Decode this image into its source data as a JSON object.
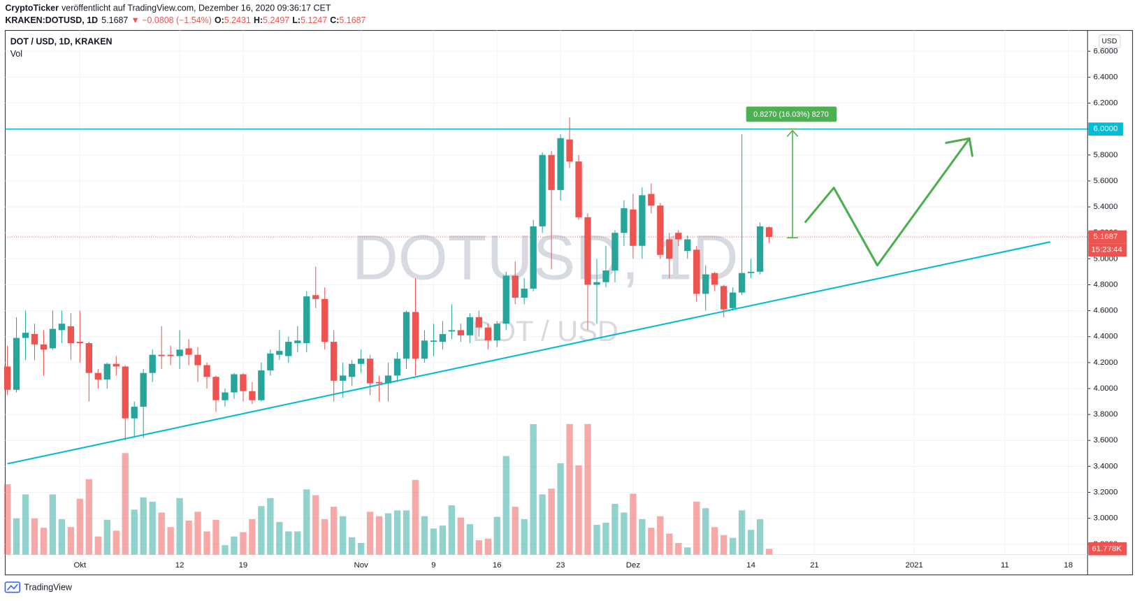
{
  "header": {
    "publisher": "CryptoTicker",
    "published": "veröffentlicht auf TradingView.com, Dezember 16, 2020 09:36:17 CET",
    "symbol": "KRAKEN:DOTUSD, 1D",
    "last": "5.1687",
    "change": "▼ −0.0808 (−1.54%)",
    "ohlc": [
      {
        "label": "O:",
        "value": "5.2431"
      },
      {
        "label": "H:",
        "value": "5.2497"
      },
      {
        "label": "L:",
        "value": "5.1247"
      },
      {
        "label": "C:",
        "value": "5.1687"
      }
    ]
  },
  "chart_data": {
    "type": "candlestick",
    "name": "DOT / USD, 1D, KRAKEN",
    "volume_name": "Vol",
    "currency": "USD",
    "watermark": {
      "title": "DOTUSD, 1D",
      "subtitle": "DOT / USD"
    },
    "up_color": "#26a69a",
    "down_color": "#ef5350",
    "x": [
      "2020-09-23",
      "2020-09-24",
      "2020-09-25",
      "2020-09-26",
      "2020-09-27",
      "2020-09-28",
      "2020-09-29",
      "2020-09-30",
      "2020-10-01",
      "2020-10-02",
      "2020-10-03",
      "2020-10-04",
      "2020-10-05",
      "2020-10-06",
      "2020-10-07",
      "2020-10-08",
      "2020-10-09",
      "2020-10-10",
      "2020-10-11",
      "2020-10-12",
      "2020-10-13",
      "2020-10-14",
      "2020-10-15",
      "2020-10-16",
      "2020-10-17",
      "2020-10-18",
      "2020-10-19",
      "2020-10-20",
      "2020-10-21",
      "2020-10-22",
      "2020-10-23",
      "2020-10-24",
      "2020-10-25",
      "2020-10-26",
      "2020-10-27",
      "2020-10-28",
      "2020-10-29",
      "2020-10-30",
      "2020-10-31",
      "2020-11-01",
      "2020-11-02",
      "2020-11-03",
      "2020-11-04",
      "2020-11-05",
      "2020-11-06",
      "2020-11-07",
      "2020-11-08",
      "2020-11-09",
      "2020-11-10",
      "2020-11-11",
      "2020-11-12",
      "2020-11-13",
      "2020-11-14",
      "2020-11-15",
      "2020-11-16",
      "2020-11-17",
      "2020-11-18",
      "2020-11-19",
      "2020-11-20",
      "2020-11-21",
      "2020-11-22",
      "2020-11-23",
      "2020-11-24",
      "2020-11-25",
      "2020-11-26",
      "2020-11-27",
      "2020-11-28",
      "2020-11-29",
      "2020-11-30",
      "2020-12-01",
      "2020-12-02",
      "2020-12-03",
      "2020-12-04",
      "2020-12-05",
      "2020-12-06",
      "2020-12-07",
      "2020-12-08",
      "2020-12-09",
      "2020-12-10",
      "2020-12-11",
      "2020-12-12",
      "2020-12-13",
      "2020-12-14",
      "2020-12-15",
      "2020-12-16"
    ],
    "open": [
      4.17,
      3.99,
      4.39,
      4.42,
      4.34,
      4.31,
      4.45,
      4.48,
      4.36,
      4.35,
      4.12,
      4.07,
      4.19,
      4.17,
      3.77,
      3.86,
      4.12,
      4.26,
      4.26,
      4.25,
      4.31,
      4.26,
      4.18,
      4.09,
      3.91,
      3.97,
      4.11,
      3.98,
      3.91,
      4.14,
      4.26,
      4.25,
      4.35,
      4.35,
      4.72,
      4.69,
      4.36,
      4.06,
      4.09,
      4.19,
      4.23,
      4.05,
      4.04,
      4.1,
      4.23,
      4.59,
      4.23,
      4.36,
      4.36,
      4.44,
      4.45,
      4.41,
      4.55,
      4.47,
      4.37,
      4.5,
      4.87,
      4.7,
      4.77,
      5.25,
      5.8,
      5.53,
      5.92,
      5.75,
      5.32,
      4.8,
      4.82,
      4.91,
      5.2,
      5.38,
      5.1,
      5.5,
      5.41,
      5.15,
      5.2,
      5.06,
      5.07,
      4.73,
      4.89,
      4.79,
      4.62,
      4.74,
      4.89,
      4.9,
      5.2431
    ],
    "high": [
      4.33,
      4.55,
      4.6,
      4.5,
      4.45,
      4.6,
      4.6,
      4.58,
      4.6,
      4.36,
      4.15,
      4.2,
      4.25,
      4.18,
      3.9,
      4.15,
      4.3,
      4.48,
      4.33,
      4.45,
      4.38,
      4.32,
      4.2,
      4.1,
      4.0,
      4.12,
      4.12,
      4.05,
      4.2,
      4.3,
      4.45,
      4.4,
      4.48,
      4.75,
      4.94,
      4.78,
      4.45,
      4.2,
      4.22,
      4.3,
      4.26,
      4.1,
      4.2,
      4.28,
      4.6,
      4.85,
      4.45,
      4.5,
      4.52,
      4.65,
      4.5,
      4.58,
      4.6,
      4.5,
      4.52,
      4.9,
      4.98,
      4.85,
      5.3,
      5.82,
      5.83,
      5.96,
      6.09,
      5.8,
      5.35,
      5.0,
      5.1,
      5.22,
      5.45,
      5.5,
      5.55,
      5.58,
      5.43,
      5.2,
      5.22,
      5.18,
      5.1,
      4.95,
      4.9,
      4.8,
      4.78,
      5.96,
      5.0,
      5.28,
      5.2497
    ],
    "low": [
      3.95,
      3.97,
      4.22,
      4.22,
      4.1,
      4.3,
      4.35,
      4.22,
      4.2,
      3.9,
      4.0,
      4.0,
      4.1,
      3.6,
      3.62,
      3.62,
      4.05,
      4.15,
      4.18,
      4.15,
      4.18,
      4.05,
      4.0,
      3.82,
      3.86,
      3.92,
      3.9,
      3.88,
      3.9,
      4.1,
      4.22,
      4.2,
      4.28,
      4.28,
      4.62,
      4.3,
      3.9,
      3.93,
      4.02,
      4.12,
      3.95,
      3.9,
      3.9,
      4.05,
      4.15,
      4.1,
      4.2,
      4.25,
      4.3,
      4.38,
      4.36,
      4.35,
      4.4,
      4.3,
      4.32,
      4.45,
      4.65,
      4.65,
      4.75,
      5.2,
      4.92,
      5.45,
      5.7,
      5.3,
      4.45,
      4.5,
      4.78,
      4.82,
      5.1,
      5.0,
      5.0,
      5.35,
      5.0,
      4.85,
      5.1,
      5.0,
      4.67,
      4.6,
      4.75,
      4.55,
      4.6,
      4.72,
      4.85,
      4.88,
      5.1247
    ],
    "close": [
      3.99,
      4.39,
      4.43,
      4.34,
      4.3,
      4.46,
      4.5,
      4.35,
      4.35,
      4.12,
      4.07,
      4.19,
      4.17,
      3.77,
      3.86,
      4.12,
      4.26,
      4.25,
      4.25,
      4.3,
      4.26,
      4.18,
      4.09,
      3.91,
      3.97,
      4.11,
      3.98,
      3.91,
      4.14,
      4.27,
      4.29,
      4.36,
      4.37,
      4.71,
      4.69,
      4.36,
      4.06,
      4.1,
      4.19,
      4.23,
      4.04,
      4.04,
      4.1,
      4.23,
      4.59,
      4.23,
      4.37,
      4.37,
      4.42,
      4.45,
      4.41,
      4.55,
      4.47,
      4.37,
      4.5,
      4.87,
      4.7,
      4.77,
      5.25,
      5.8,
      5.53,
      5.93,
      5.75,
      5.32,
      4.8,
      4.82,
      4.91,
      5.2,
      5.39,
      5.1,
      5.49,
      5.41,
      5.03,
      5.0,
      5.15,
      5.15,
      4.73,
      4.88,
      4.8,
      4.61,
      4.74,
      4.89,
      4.9,
      5.25,
      5.1687
    ],
    "volume": [
      749000,
      386000,
      641000,
      386000,
      286000,
      641000,
      378000,
      293000,
      595000,
      803000,
      193000,
      371000,
      255000,
      1081000,
      479000,
      610000,
      564000,
      448000,
      293000,
      602000,
      363000,
      456000,
      247000,
      371000,
      100000,
      193000,
      239000,
      378000,
      517000,
      602000,
      347000,
      247000,
      247000,
      695000,
      633000,
      378000,
      510000,
      409000,
      185000,
      124000,
      456000,
      409000,
      440000,
      471000,
      471000,
      795000,
      409000,
      278000,
      309000,
      525000,
      394000,
      324000,
      154000,
      170000,
      402000,
      1050000,
      510000,
      378000,
      1390000,
      641000,
      703000,
      973000,
      1390000,
      950000,
      1390000,
      317000,
      340000,
      541000,
      448000,
      649000,
      378000,
      286000,
      409000,
      224000,
      124000,
      77000,
      564000,
      494000,
      293000,
      208000,
      178000,
      471000,
      263000,
      378000,
      61778
    ],
    "volume_last_label": "61.778K",
    "countdown": "15:23:44",
    "xlim": [
      "2020-09-23",
      "2021-01-19"
    ],
    "xticks": [
      {
        "value": "2020-10-01",
        "label": "Okt"
      },
      {
        "value": "2020-10-12",
        "label": "12"
      },
      {
        "value": "2020-10-19",
        "label": "19"
      },
      {
        "value": "2020-11-01",
        "label": "Nov"
      },
      {
        "value": "2020-11-09",
        "label": "9"
      },
      {
        "value": "2020-11-16",
        "label": "16"
      },
      {
        "value": "2020-11-23",
        "label": "23"
      },
      {
        "value": "2020-12-01",
        "label": "Dez"
      },
      {
        "value": "2020-12-14",
        "label": "14"
      },
      {
        "value": "2020-12-21",
        "label": "21"
      },
      {
        "value": "2021-01-01",
        "label": "2021"
      },
      {
        "value": "2021-01-11",
        "label": "11"
      },
      {
        "value": "2021-01-18",
        "label": "18"
      }
    ],
    "ylim": [
      2.72,
      6.76
    ],
    "yticks": [
      {
        "value": 2.8,
        "label": "2.8000"
      },
      {
        "value": 3.0,
        "label": "3.0000"
      },
      {
        "value": 3.2,
        "label": "3.2000"
      },
      {
        "value": 3.4,
        "label": "3.4000"
      },
      {
        "value": 3.6,
        "label": "3.6000"
      },
      {
        "value": 3.8,
        "label": "3.8000"
      },
      {
        "value": 4.0,
        "label": "4.0000"
      },
      {
        "value": 4.2,
        "label": "4.2000"
      },
      {
        "value": 4.4,
        "label": "4.4000"
      },
      {
        "value": 4.6,
        "label": "4.6000"
      },
      {
        "value": 4.8,
        "label": "4.8000"
      },
      {
        "value": 5.0,
        "label": "5.0000"
      },
      {
        "value": 5.2,
        "label": "5.2000"
      },
      {
        "value": 5.4,
        "label": "5.4000"
      },
      {
        "value": 5.6,
        "label": "5.6000"
      },
      {
        "value": 5.8,
        "label": "5.8000"
      },
      {
        "value": 6.0,
        "label": "6.0000"
      },
      {
        "value": 6.2,
        "label": "6.2000"
      },
      {
        "value": 6.4,
        "label": "6.4000"
      },
      {
        "value": 6.6,
        "label": "6.6000"
      }
    ],
    "grid": true,
    "hline": {
      "value": 6,
      "label": "6.0000",
      "color": "#00bcd4"
    },
    "trend_line": {
      "start": {
        "date": "2020-09-23",
        "price": 3.42
      },
      "end": {
        "date": "2021-01-16",
        "price": 5.13
      },
      "color": "#00bcd4"
    },
    "measure_label": "0.8270 (16.03%) 8270"
  },
  "footer": {
    "brand": "TradingView"
  }
}
